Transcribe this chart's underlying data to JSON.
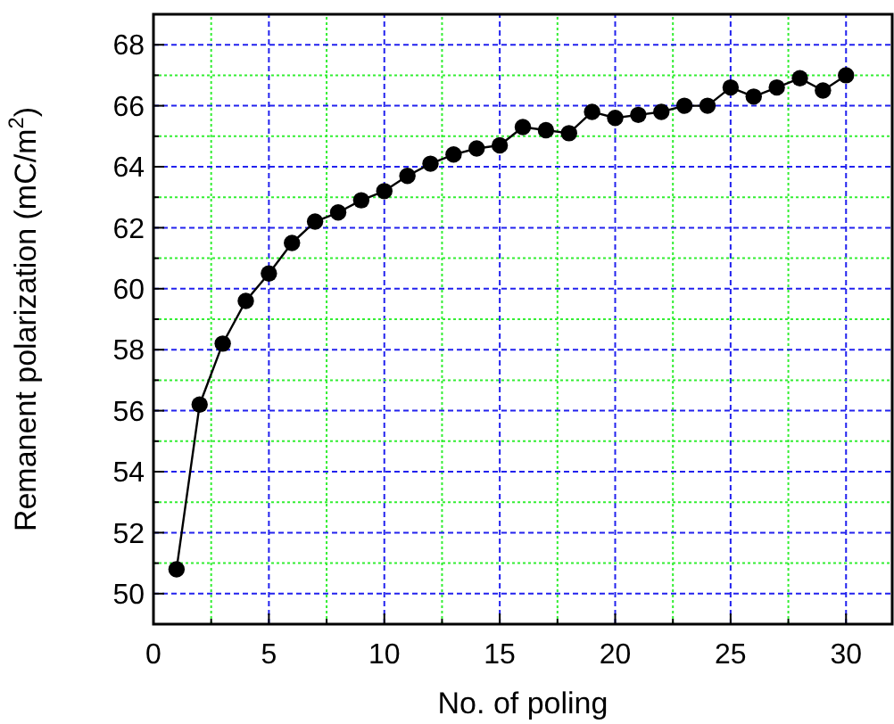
{
  "chart_data": {
    "type": "line",
    "xlabel": "No. of poling",
    "ylabel": "Remanent polarization (mC/m$^{2}$)",
    "x": [
      1,
      2,
      3,
      4,
      5,
      6,
      7,
      8,
      9,
      10,
      11,
      12,
      13,
      14,
      15,
      16,
      17,
      18,
      19,
      20,
      21,
      22,
      23,
      24,
      25,
      26,
      27,
      28,
      29,
      30
    ],
    "series": [
      {
        "color": "#000000",
        "values": [
          50.8,
          56.2,
          58.2,
          59.6,
          60.5,
          61.5,
          62.2,
          62.5,
          62.9,
          63.2,
          63.7,
          64.1,
          64.4,
          64.6,
          64.7,
          65.3,
          65.2,
          65.1,
          65.8,
          65.6,
          65.7,
          65.8,
          66.0,
          66.0,
          66.6,
          66.3,
          66.6,
          66.9,
          66.5,
          67.0
        ]
      }
    ],
    "xlim": [
      0,
      32
    ],
    "ylim": [
      49,
      69
    ],
    "xticks": [
      0,
      {
        "value": 2.5,
        "label": null
      },
      5,
      {
        "value": 7.5,
        "label": null
      },
      10,
      {
        "value": 12.5,
        "label": null
      },
      15,
      {
        "value": 17.5,
        "label": null
      },
      20,
      {
        "value": 22.5,
        "label": null
      },
      25,
      {
        "value": 27.5,
        "label": null
      },
      30
    ],
    "yticks": [
      50,
      {
        "value": 51,
        "label": null
      },
      52,
      {
        "value": 53,
        "label": null
      },
      54,
      {
        "value": 55,
        "label": null
      },
      56,
      {
        "value": 57,
        "label": null
      },
      58,
      {
        "value": 59,
        "label": null
      },
      60,
      {
        "value": 61,
        "label": null
      },
      62,
      {
        "value": 63,
        "label": null
      },
      64,
      {
        "value": 65,
        "label": null
      },
      66,
      {
        "value": 67,
        "label": null
      },
      68
    ],
    "grid": true,
    "marker": "circle",
    "line_style": "solid"
  }
}
